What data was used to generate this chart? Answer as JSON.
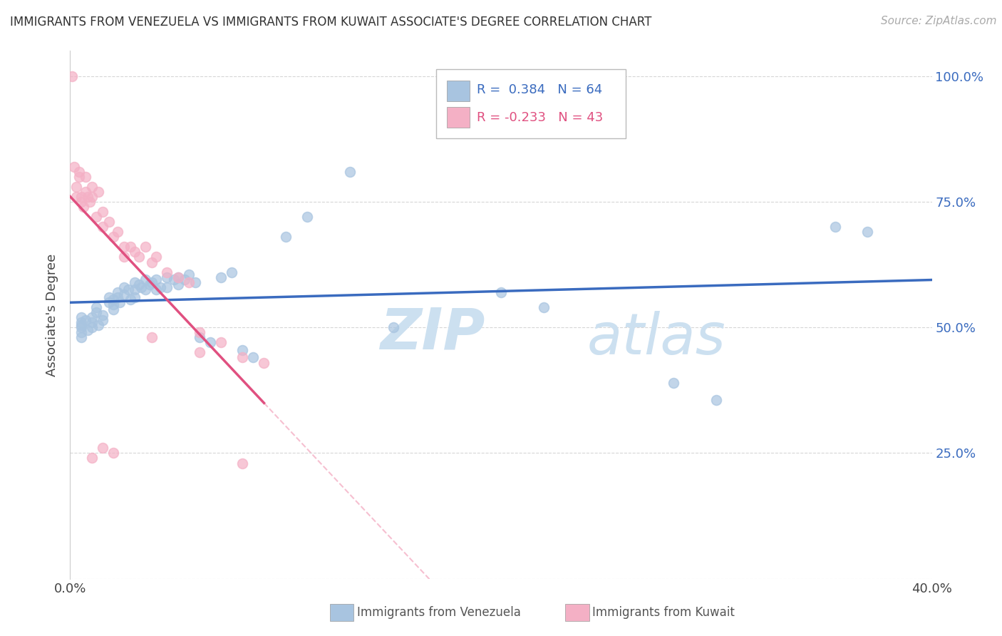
{
  "title": "IMMIGRANTS FROM VENEZUELA VS IMMIGRANTS FROM KUWAIT ASSOCIATE'S DEGREE CORRELATION CHART",
  "source": "Source: ZipAtlas.com",
  "ylabel": "Associate's Degree",
  "x_min": 0.0,
  "x_max": 0.4,
  "y_min": 0.0,
  "y_max": 1.05,
  "x_ticks": [
    0.0,
    0.05,
    0.1,
    0.15,
    0.2,
    0.25,
    0.3,
    0.35,
    0.4
  ],
  "y_ticks": [
    0.0,
    0.25,
    0.5,
    0.75,
    1.0
  ],
  "venezuela_color": "#a8c4e0",
  "venezuela_line_color": "#3a6bbf",
  "kuwait_color": "#f4b0c5",
  "kuwait_line_color": "#e05080",
  "kuwait_dash_color": "#f4b0c5",
  "R_venezuela": 0.384,
  "N_venezuela": 64,
  "R_kuwait": -0.233,
  "N_kuwait": 43,
  "watermark_zip": "ZIP",
  "watermark_atlas": "atlas",
  "watermark_color": "#cce0f0",
  "background_color": "#ffffff",
  "grid_color": "#cccccc",
  "legend_R_color": "#3a6bbf",
  "legend_N_color": "#3a6bbf"
}
